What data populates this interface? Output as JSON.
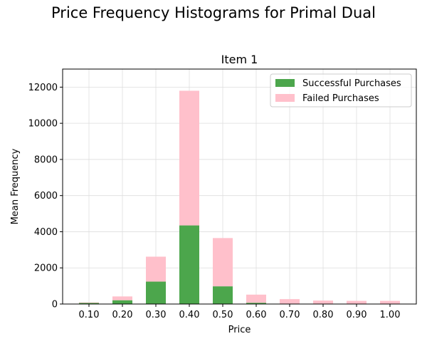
{
  "figure": {
    "suptitle": "Price Frequency Histograms for Primal Dual"
  },
  "chart_data": {
    "type": "bar",
    "stacked": true,
    "title": "Item 1",
    "xlabel": "Price",
    "ylabel": "Mean Frequency",
    "categories": [
      "0.10",
      "0.20",
      "0.30",
      "0.40",
      "0.50",
      "0.60",
      "0.70",
      "0.80",
      "0.90",
      "1.00"
    ],
    "ylim": [
      0,
      13000
    ],
    "yticks": [
      0,
      2000,
      4000,
      6000,
      8000,
      10000,
      12000
    ],
    "grid": true,
    "legend_position": "top-right",
    "series": [
      {
        "name": "Successful Purchases",
        "color": "#4ca64c",
        "values": [
          60,
          210,
          1240,
          4350,
          980,
          70,
          20,
          10,
          5,
          5
        ]
      },
      {
        "name": "Failed Purchases",
        "color": "#ffc0cb",
        "values": [
          30,
          210,
          1380,
          7450,
          2670,
          450,
          250,
          180,
          170,
          170
        ]
      }
    ]
  }
}
